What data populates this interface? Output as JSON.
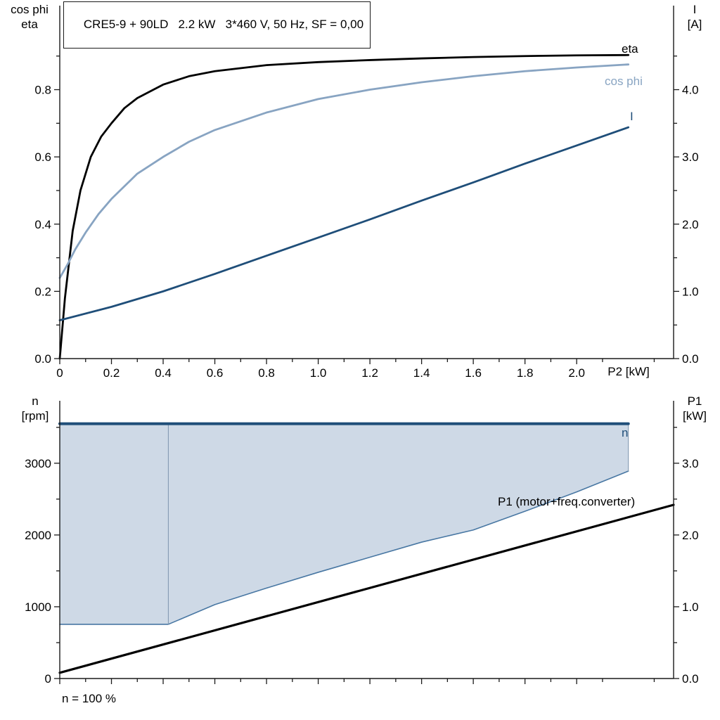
{
  "footnote": "n = 100 %",
  "chart_data": [
    {
      "type": "line",
      "title": "CRE5-9 + 90LD   2.2 kW   3*460 V, 50 Hz, SF = 0,00",
      "x": {
        "label": "P2 [kW]",
        "min": 0,
        "max": 2.375,
        "ticks": [
          0,
          0.2,
          0.4,
          0.6,
          0.8,
          1,
          1.2,
          1.4,
          1.6,
          1.8,
          2
        ],
        "tick_labels": [
          "0",
          "0.2",
          "0.4",
          "0.6",
          "0.8",
          "1.0",
          "1.2",
          "1.4",
          "1.6",
          "1.8",
          "2.0"
        ]
      },
      "left": {
        "title_lines": [
          "cos phi",
          "eta"
        ],
        "min": 0,
        "max": 1.05,
        "ticks": [
          0,
          0.2,
          0.4,
          0.6,
          0.8
        ],
        "tick_labels": [
          "0.0",
          "0.2",
          "0.4",
          "0.6",
          "0.8"
        ]
      },
      "right": {
        "title_lines": [
          "I",
          "[A]"
        ],
        "min": 0,
        "max": 5.25,
        "ticks": [
          0,
          1,
          2,
          3,
          4
        ],
        "tick_labels": [
          "0.0",
          "1.0",
          "2.0",
          "3.0",
          "4.0"
        ]
      },
      "series": [
        {
          "id": "eta",
          "name": "eta",
          "axis": "left",
          "color": "#000000",
          "width": 2.8,
          "x": [
            0,
            0.02,
            0.05,
            0.08,
            0.12,
            0.16,
            0.2,
            0.25,
            0.3,
            0.4,
            0.5,
            0.6,
            0.8,
            1,
            1.2,
            1.4,
            1.6,
            1.8,
            2,
            2.2
          ],
          "y": [
            0,
            0.18,
            0.38,
            0.5,
            0.6,
            0.66,
            0.7,
            0.745,
            0.775,
            0.815,
            0.84,
            0.855,
            0.873,
            0.882,
            0.888,
            0.893,
            0.897,
            0.9,
            0.902,
            0.903
          ]
        },
        {
          "id": "cos-phi",
          "name": "cos phi",
          "axis": "left",
          "color": "#88A4C2",
          "width": 2.8,
          "x": [
            0,
            0.03,
            0.06,
            0.1,
            0.15,
            0.2,
            0.3,
            0.4,
            0.5,
            0.6,
            0.8,
            1,
            1.2,
            1.4,
            1.6,
            1.8,
            2,
            2.2
          ],
          "y": [
            0.24,
            0.28,
            0.325,
            0.375,
            0.43,
            0.475,
            0.55,
            0.6,
            0.645,
            0.68,
            0.732,
            0.772,
            0.8,
            0.822,
            0.84,
            0.855,
            0.866,
            0.875
          ]
        },
        {
          "id": "current",
          "name": "I",
          "axis": "right",
          "color": "#1F4E79",
          "width": 2.8,
          "x": [
            0,
            0.2,
            0.4,
            0.6,
            0.8,
            1,
            1.2,
            1.4,
            1.6,
            1.8,
            2,
            2.2
          ],
          "y": [
            0.57,
            0.77,
            1,
            1.26,
            1.53,
            1.8,
            2.07,
            2.35,
            2.62,
            2.9,
            3.17,
            3.44
          ]
        }
      ]
    },
    {
      "type": "line",
      "title": "",
      "x": {
        "label": "",
        "min": 0,
        "max": 2.375,
        "ticks": [
          0,
          0.2,
          0.4,
          0.6,
          0.8,
          1,
          1.2,
          1.4,
          1.6,
          1.8,
          2
        ],
        "tick_labels": []
      },
      "left": {
        "title_lines": [
          "n",
          "[rpm]"
        ],
        "min": 0,
        "max": 3870,
        "ticks": [
          0,
          1000,
          2000,
          3000
        ],
        "tick_labels": [
          "0",
          "1000",
          "2000",
          "3000"
        ]
      },
      "right": {
        "title_lines": [
          "P1",
          "[kW]"
        ],
        "min": 0,
        "max": 3.87,
        "ticks": [
          0,
          1,
          2,
          3
        ],
        "tick_labels": [
          "0.0",
          "1.0",
          "2.0",
          "3.0"
        ]
      },
      "series": [
        {
          "id": "speed-range-area",
          "name": "speed range",
          "type": "band",
          "axis": "left",
          "fill": "#CED9E6",
          "lower": {
            "x": [
              0,
              0.42,
              0.6,
              0.8,
              1,
              1.2,
              1.4,
              1.6,
              1.8,
              2,
              2.2
            ],
            "y": [
              755,
              755,
              1030,
              1260,
              1480,
              1690,
              1900,
              2070,
              2330,
              2600,
              2890
            ]
          },
          "upper": {
            "x": [
              0,
              2.2
            ],
            "y": [
              3550,
              3550
            ]
          }
        },
        {
          "id": "n-min",
          "name": "",
          "axis": "left",
          "color": "#4877A3",
          "width": 1.6,
          "x": [
            0,
            0.42,
            0.6,
            0.8,
            1,
            1.2,
            1.4,
            1.6,
            1.8,
            2,
            2.2
          ],
          "y": [
            755,
            755,
            1030,
            1260,
            1480,
            1690,
            1900,
            2070,
            2330,
            2600,
            2890
          ]
        },
        {
          "id": "range-edge-kink",
          "name": "",
          "axis": "left",
          "color": "#7C94AD",
          "width": 1,
          "x": [
            0.42,
            0.42
          ],
          "y": [
            755,
            3550
          ]
        },
        {
          "id": "range-edge-right",
          "name": "",
          "axis": "left",
          "color": "#7C94AD",
          "width": 1,
          "x": [
            2.2,
            2.2
          ],
          "y": [
            2890,
            3550
          ]
        },
        {
          "id": "n-max",
          "name": "n",
          "axis": "left",
          "color": "#1F4E79",
          "width": 4,
          "x": [
            0,
            2.2
          ],
          "y": [
            3550,
            3550
          ]
        },
        {
          "id": "p1",
          "name": "P1 (motor+freq.converter)",
          "axis": "right",
          "color": "#000000",
          "width": 3.2,
          "x": [
            0,
            2.375
          ],
          "y": [
            0.08,
            2.42
          ]
        }
      ]
    }
  ]
}
